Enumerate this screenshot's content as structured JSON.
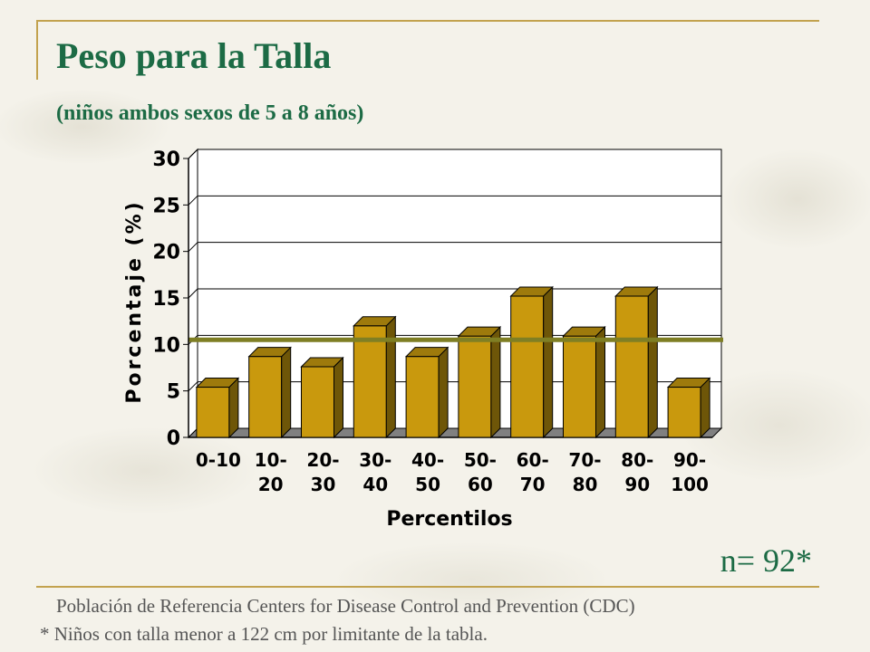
{
  "slide": {
    "title": "Peso para la Talla",
    "subtitle": "(niños ambos sexos de 5 a 8 años)",
    "n_label": "n= 92*",
    "source": "Población de Referencia Centers for Disease Control and Prevention (CDC)",
    "footnote": "* Niños con talla menor a 122 cm por limitante de la tabla."
  },
  "chart_data": {
    "type": "bar",
    "categories": [
      [
        "0-10"
      ],
      [
        "10-",
        "20"
      ],
      [
        "20-",
        "30"
      ],
      [
        "30-",
        "40"
      ],
      [
        "40-",
        "50"
      ],
      [
        "50-",
        "60"
      ],
      [
        "60-",
        "70"
      ],
      [
        "70-",
        "80"
      ],
      [
        "80-",
        "90"
      ],
      [
        "90-",
        "100"
      ]
    ],
    "values": [
      5.4,
      8.7,
      7.6,
      12.0,
      8.7,
      10.9,
      15.2,
      10.9,
      15.2,
      5.4
    ],
    "reference_line": 10.5,
    "xlabel": "Percentilos",
    "ylabel": "Porcentaje (%)",
    "ylim": [
      0,
      30
    ],
    "yticks": [
      0,
      5,
      10,
      15,
      20,
      25,
      30
    ],
    "grid": true,
    "colors": {
      "bar_front": "#c9990d",
      "bar_side": "#6e5608",
      "bar_top": "#9e7a0c",
      "floor": "#808080",
      "reference_line": "#7f7f24"
    }
  }
}
